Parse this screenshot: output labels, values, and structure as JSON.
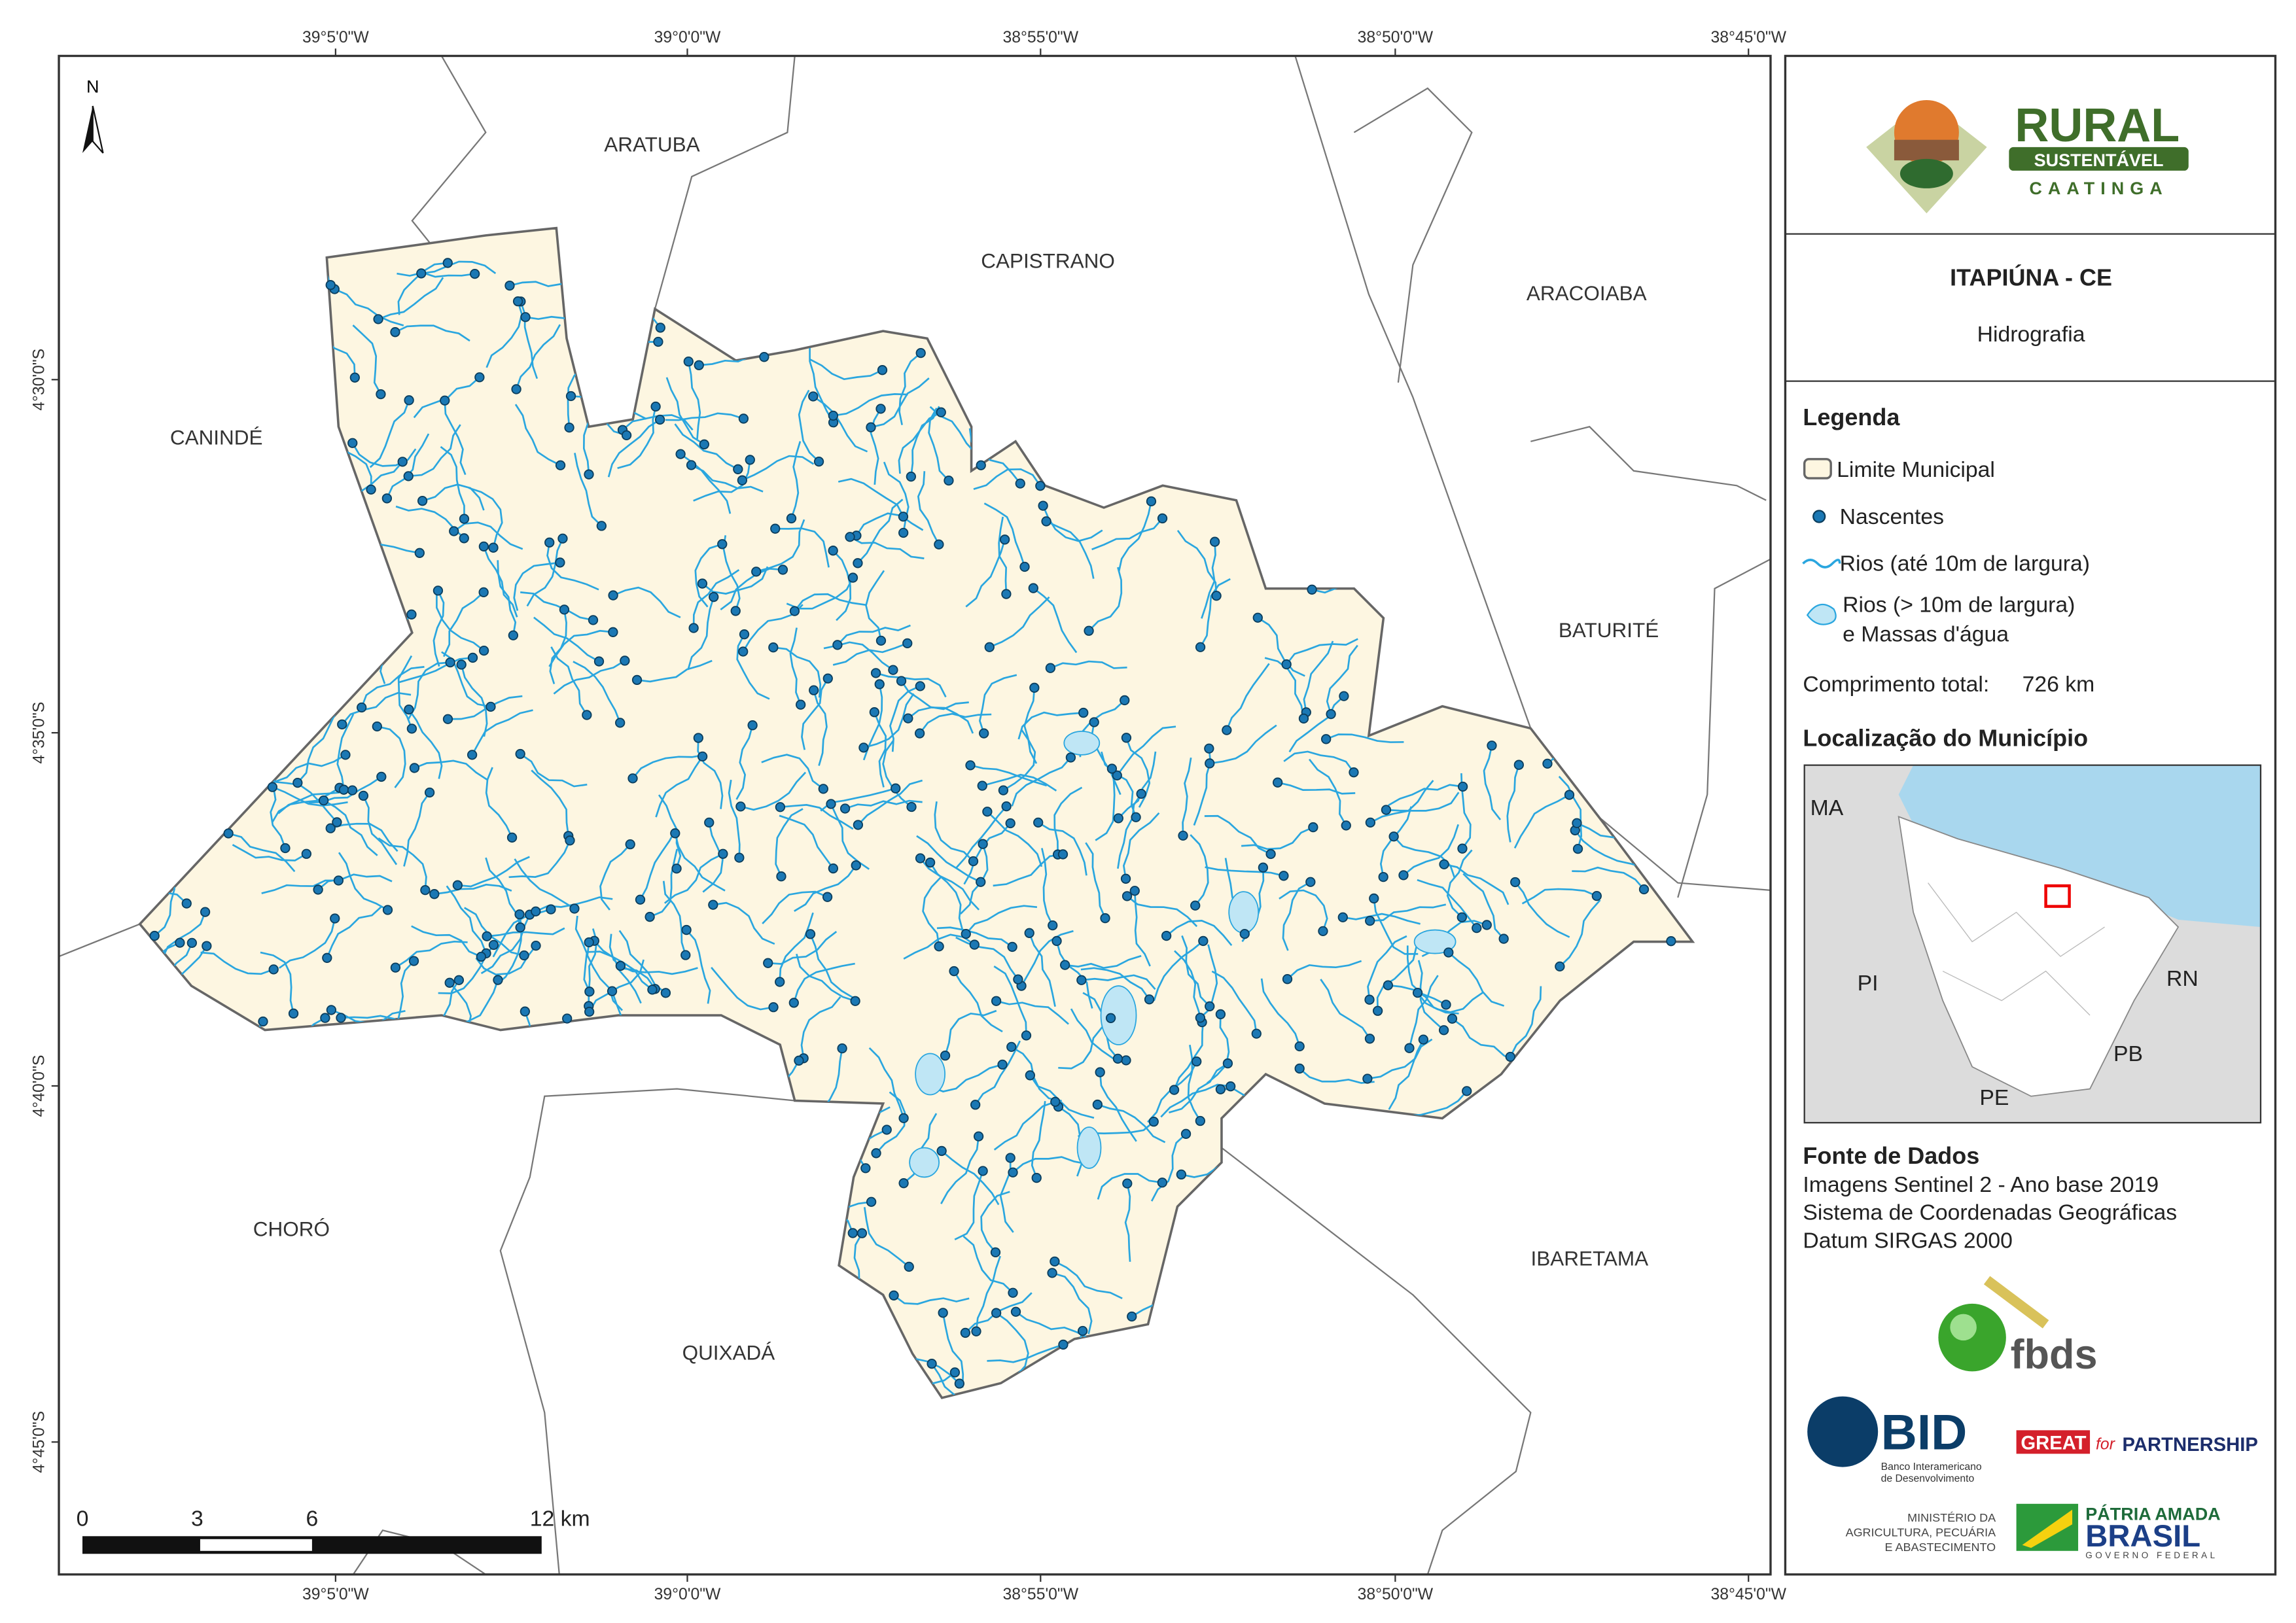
{
  "map": {
    "north": "N",
    "top_ticks": [
      "39°5'0\"W",
      "39°0'0\"W",
      "38°55'0\"W",
      "38°50'0\"W",
      "38°45'0\"W"
    ],
    "bottom_ticks": [
      "39°5'0\"W",
      "39°0'0\"W",
      "38°55'0\"W",
      "38°50'0\"W",
      "38°45'0\"W"
    ],
    "left_ticks": [
      "4°30'0\"S",
      "4°35'0\"S",
      "4°40'0\"S",
      "4°45'0\"S"
    ],
    "places": [
      "ARATUBA",
      "CAPISTRANO",
      "ARACOIABA",
      "CANINDÉ",
      "BATURITÉ",
      "CHORÓ",
      "QUIXADÁ",
      "IBARETAMA"
    ],
    "scale_labels": [
      "0",
      "3",
      "6",
      "12 km"
    ]
  },
  "logo": {
    "rural": "RURAL",
    "sustentavel": "SUSTENTÁVEL",
    "caatinga": "CAATINGA"
  },
  "header": {
    "title": "ITAPIÚNA - CE",
    "subtitle": "Hidrografia"
  },
  "legend": {
    "title": "Legenda",
    "items": [
      "Limite Municipal",
      "Nascentes",
      "Rios (até 10m de largura)",
      "Rios (> 10m de largura)",
      "e Massas d'água"
    ],
    "length_label": "Comprimento total:",
    "length_value": "726 km"
  },
  "location": {
    "title": "Localização do Município",
    "states": [
      "MA",
      "PI",
      "RN",
      "PB",
      "PE"
    ]
  },
  "sources": {
    "title": "Fonte de Dados",
    "lines": [
      "Imagens Sentinel 2 - Ano base 2019",
      "Sistema de Coordenadas Geográficas",
      "Datum SIRGAS 2000"
    ]
  },
  "partners": {
    "fbds": "fbds",
    "bid": "BID",
    "bid_sub": [
      "Banco Interamericano",
      "de Desenvolvimento"
    ],
    "great": "GREAT",
    "great_for": "for",
    "great_partner": "PARTNERSHIP",
    "ministry": [
      "MINISTÉRIO DA",
      "AGRICULTURA, PECUÁRIA",
      "E ABASTECIMENTO"
    ],
    "patria": "PÁTRIA AMADA",
    "brasil": "BRASIL",
    "governo": "GOVERNO FEDERAL"
  }
}
